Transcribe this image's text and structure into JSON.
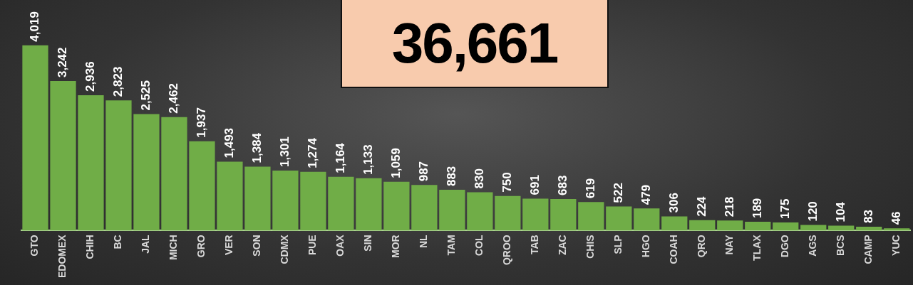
{
  "chart_data": {
    "type": "bar",
    "categories": [
      "GTO",
      "EDOMEX",
      "CHIH",
      "BC",
      "JAL",
      "MICH",
      "GRO",
      "VER",
      "SON",
      "CDMX",
      "PUE",
      "OAX",
      "SIN",
      "MOR",
      "NL",
      "TAM",
      "COL",
      "QROO",
      "TAB",
      "ZAC",
      "CHIS",
      "SLP",
      "HGO",
      "COAH",
      "QRO",
      "NAY",
      "TLAX",
      "DGO",
      "AGS",
      "BCS",
      "CAMP",
      "YUC"
    ],
    "values": [
      4019,
      3242,
      2936,
      2823,
      2525,
      2462,
      1937,
      1493,
      1384,
      1301,
      1274,
      1164,
      1133,
      1059,
      987,
      883,
      830,
      750,
      691,
      683,
      619,
      522,
      479,
      306,
      224,
      218,
      189,
      175,
      120,
      104,
      83,
      46
    ],
    "color": "#70ad47",
    "ylim": [
      0,
      5000
    ],
    "tick_labels": "x",
    "grid": false,
    "legend": false,
    "value_labels": [
      "4,019",
      "3,242",
      "2,936",
      "2,823",
      "2,525",
      "2,462",
      "1,937",
      "1,493",
      "1,384",
      "1,301",
      "1,274",
      "1,164",
      "1,133",
      "1,059",
      "987",
      "883",
      "830",
      "750",
      "691",
      "683",
      "619",
      "522",
      "479",
      "306",
      "224",
      "218",
      "189",
      "175",
      "120",
      "104",
      "83",
      "46"
    ],
    "annotations": [
      "36,661"
    ]
  }
}
